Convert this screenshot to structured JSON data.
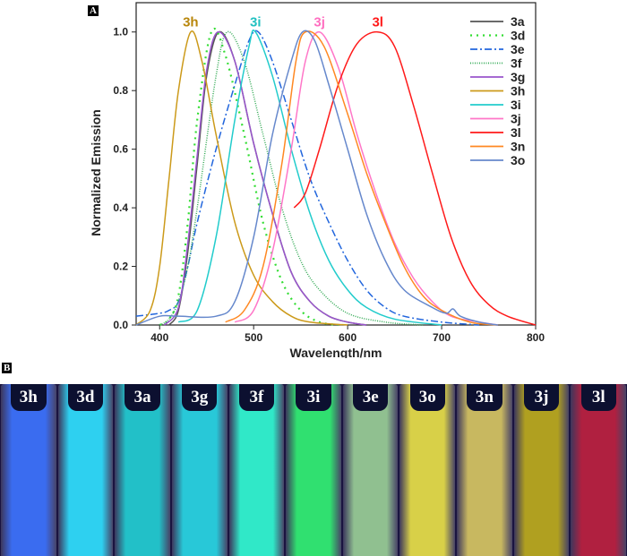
{
  "panels": {
    "a": "A",
    "b": "B"
  },
  "chart_data": {
    "type": "line",
    "xlabel": "Wavelength/nm",
    "ylabel": "Normalized Emission",
    "xlim": [
      375,
      800
    ],
    "ylim": [
      0,
      1.1
    ],
    "xticks": [
      400,
      500,
      600,
      700,
      800
    ],
    "yticks": [
      0.0,
      0.2,
      0.4,
      0.6,
      0.8,
      1.0
    ],
    "ytick_labels": [
      "0.0",
      "0.2",
      "0.4",
      "0.6",
      "0.8",
      "1.0"
    ],
    "legend_position": "top-right",
    "grid": false,
    "peak_labels": [
      {
        "text": "3h",
        "x": 433,
        "color": "#b8860b"
      },
      {
        "text": "3i",
        "x": 502,
        "color": "#20c0c0"
      },
      {
        "text": "3j",
        "x": 570,
        "color": "#ff6ec0"
      },
      {
        "text": "3l",
        "x": 632,
        "color": "#ff1a1a"
      }
    ],
    "series": [
      {
        "name": "3a",
        "color": "#555555",
        "dash": "solid",
        "points": [
          [
            410,
            0
          ],
          [
            420,
            0.05
          ],
          [
            430,
            0.25
          ],
          [
            440,
            0.55
          ],
          [
            450,
            0.85
          ],
          [
            463,
            1.0
          ],
          [
            480,
            0.9
          ],
          [
            500,
            0.62
          ],
          [
            520,
            0.38
          ],
          [
            540,
            0.18
          ],
          [
            560,
            0.08
          ],
          [
            580,
            0.03
          ],
          [
            600,
            0.01
          ],
          [
            620,
            0
          ]
        ]
      },
      {
        "name": "3d",
        "color": "#33dd33",
        "dash": "dot",
        "points": [
          [
            400,
            0
          ],
          [
            410,
            0.02
          ],
          [
            420,
            0.1
          ],
          [
            430,
            0.35
          ],
          [
            440,
            0.7
          ],
          [
            455,
            1.0
          ],
          [
            470,
            0.92
          ],
          [
            490,
            0.65
          ],
          [
            510,
            0.35
          ],
          [
            530,
            0.15
          ],
          [
            550,
            0.05
          ],
          [
            570,
            0.01
          ],
          [
            590,
            0
          ]
        ]
      },
      {
        "name": "3e",
        "color": "#2266dd",
        "dash": "dashdot",
        "points": [
          [
            375,
            0.03
          ],
          [
            400,
            0.04
          ],
          [
            410,
            0.05
          ],
          [
            420,
            0.08
          ],
          [
            430,
            0.2
          ],
          [
            440,
            0.35
          ],
          [
            460,
            0.6
          ],
          [
            480,
            0.82
          ],
          [
            495,
            0.97
          ],
          [
            505,
            1.0
          ],
          [
            520,
            0.9
          ],
          [
            540,
            0.7
          ],
          [
            560,
            0.5
          ],
          [
            580,
            0.35
          ],
          [
            600,
            0.22
          ],
          [
            620,
            0.12
          ],
          [
            640,
            0.06
          ],
          [
            660,
            0.03
          ],
          [
            700,
            0.01
          ],
          [
            740,
            0
          ]
        ]
      },
      {
        "name": "3f",
        "color": "#33aa55",
        "dash": "finedot",
        "points": [
          [
            400,
            0
          ],
          [
            410,
            0.02
          ],
          [
            420,
            0.08
          ],
          [
            430,
            0.2
          ],
          [
            440,
            0.4
          ],
          [
            460,
            0.85
          ],
          [
            472,
            1.0
          ],
          [
            490,
            0.9
          ],
          [
            510,
            0.65
          ],
          [
            530,
            0.4
          ],
          [
            550,
            0.22
          ],
          [
            570,
            0.12
          ],
          [
            600,
            0.04
          ],
          [
            640,
            0.01
          ],
          [
            680,
            0
          ]
        ]
      },
      {
        "name": "3g",
        "color": "#9955cc",
        "dash": "solid",
        "points": [
          [
            405,
            0
          ],
          [
            420,
            0.06
          ],
          [
            430,
            0.28
          ],
          [
            440,
            0.58
          ],
          [
            450,
            0.87
          ],
          [
            462,
            1.0
          ],
          [
            480,
            0.9
          ],
          [
            500,
            0.62
          ],
          [
            520,
            0.38
          ],
          [
            540,
            0.18
          ],
          [
            560,
            0.08
          ],
          [
            580,
            0.03
          ],
          [
            600,
            0.01
          ],
          [
            620,
            0
          ]
        ]
      },
      {
        "name": "3h",
        "color": "#cc9a1a",
        "dash": "solid",
        "points": [
          [
            375,
            0
          ],
          [
            390,
            0.05
          ],
          [
            400,
            0.2
          ],
          [
            410,
            0.5
          ],
          [
            420,
            0.8
          ],
          [
            433,
            1.0
          ],
          [
            445,
            0.9
          ],
          [
            460,
            0.65
          ],
          [
            480,
            0.35
          ],
          [
            500,
            0.17
          ],
          [
            520,
            0.08
          ],
          [
            540,
            0.03
          ],
          [
            560,
            0.01
          ],
          [
            600,
            0
          ]
        ]
      },
      {
        "name": "3i",
        "color": "#22cccc",
        "dash": "solid",
        "points": [
          [
            420,
            0.01
          ],
          [
            440,
            0.05
          ],
          [
            460,
            0.3
          ],
          [
            480,
            0.7
          ],
          [
            495,
            0.95
          ],
          [
            502,
            1.0
          ],
          [
            520,
            0.85
          ],
          [
            540,
            0.6
          ],
          [
            560,
            0.38
          ],
          [
            580,
            0.22
          ],
          [
            600,
            0.12
          ],
          [
            620,
            0.06
          ],
          [
            650,
            0.02
          ],
          [
            700,
            0
          ]
        ]
      },
      {
        "name": "3j",
        "color": "#ff77c8",
        "dash": "solid",
        "points": [
          [
            480,
            0.01
          ],
          [
            500,
            0.05
          ],
          [
            520,
            0.25
          ],
          [
            540,
            0.6
          ],
          [
            555,
            0.9
          ],
          [
            570,
            1.0
          ],
          [
            590,
            0.88
          ],
          [
            610,
            0.65
          ],
          [
            630,
            0.45
          ],
          [
            650,
            0.28
          ],
          [
            670,
            0.16
          ],
          [
            690,
            0.08
          ],
          [
            710,
            0.03
          ],
          [
            740,
            0.01
          ],
          [
            760,
            0
          ]
        ]
      },
      {
        "name": "3l",
        "color": "#ff1a1a",
        "dash": "solid",
        "points": [
          [
            543,
            0.4
          ],
          [
            555,
            0.45
          ],
          [
            570,
            0.6
          ],
          [
            590,
            0.82
          ],
          [
            610,
            0.96
          ],
          [
            632,
            1.0
          ],
          [
            650,
            0.95
          ],
          [
            670,
            0.75
          ],
          [
            690,
            0.52
          ],
          [
            710,
            0.3
          ],
          [
            730,
            0.15
          ],
          [
            750,
            0.07
          ],
          [
            770,
            0.03
          ],
          [
            800,
            0
          ]
        ]
      },
      {
        "name": "3n",
        "color": "#ff8822",
        "dash": "solid",
        "points": [
          [
            470,
            0.01
          ],
          [
            490,
            0.05
          ],
          [
            510,
            0.2
          ],
          [
            530,
            0.55
          ],
          [
            545,
            0.9
          ],
          [
            555,
            1.0
          ],
          [
            575,
            0.95
          ],
          [
            600,
            0.72
          ],
          [
            620,
            0.52
          ],
          [
            640,
            0.35
          ],
          [
            660,
            0.2
          ],
          [
            680,
            0.1
          ],
          [
            700,
            0.05
          ],
          [
            730,
            0.01
          ],
          [
            760,
            0
          ]
        ]
      },
      {
        "name": "3o",
        "color": "#6688cc",
        "dash": "solid",
        "points": [
          [
            375,
            0
          ],
          [
            400,
            0.03
          ],
          [
            420,
            0.03
          ],
          [
            460,
            0.03
          ],
          [
            480,
            0.08
          ],
          [
            500,
            0.3
          ],
          [
            520,
            0.65
          ],
          [
            540,
            0.9
          ],
          [
            552,
            1.0
          ],
          [
            565,
            0.97
          ],
          [
            580,
            0.82
          ],
          [
            600,
            0.6
          ],
          [
            620,
            0.38
          ],
          [
            640,
            0.22
          ],
          [
            660,
            0.12
          ],
          [
            690,
            0.06
          ],
          [
            705,
            0.04
          ],
          [
            712,
            0.055
          ],
          [
            720,
            0.03
          ],
          [
            740,
            0.01
          ],
          [
            760,
            0
          ]
        ]
      }
    ]
  },
  "vials": [
    {
      "label": "3h",
      "color": "#3a6cf0"
    },
    {
      "label": "3d",
      "color": "#2ed0f0"
    },
    {
      "label": "3a",
      "color": "#22c0c8"
    },
    {
      "label": "3g",
      "color": "#28c8d8"
    },
    {
      "label": "3f",
      "color": "#30e8c8"
    },
    {
      "label": "3i",
      "color": "#30e070"
    },
    {
      "label": "3e",
      "color": "#90c090"
    },
    {
      "label": "3o",
      "color": "#d8d048"
    },
    {
      "label": "3n",
      "color": "#c8b860"
    },
    {
      "label": "3j",
      "color": "#b0a020"
    },
    {
      "label": "3l",
      "color": "#b02040"
    }
  ]
}
